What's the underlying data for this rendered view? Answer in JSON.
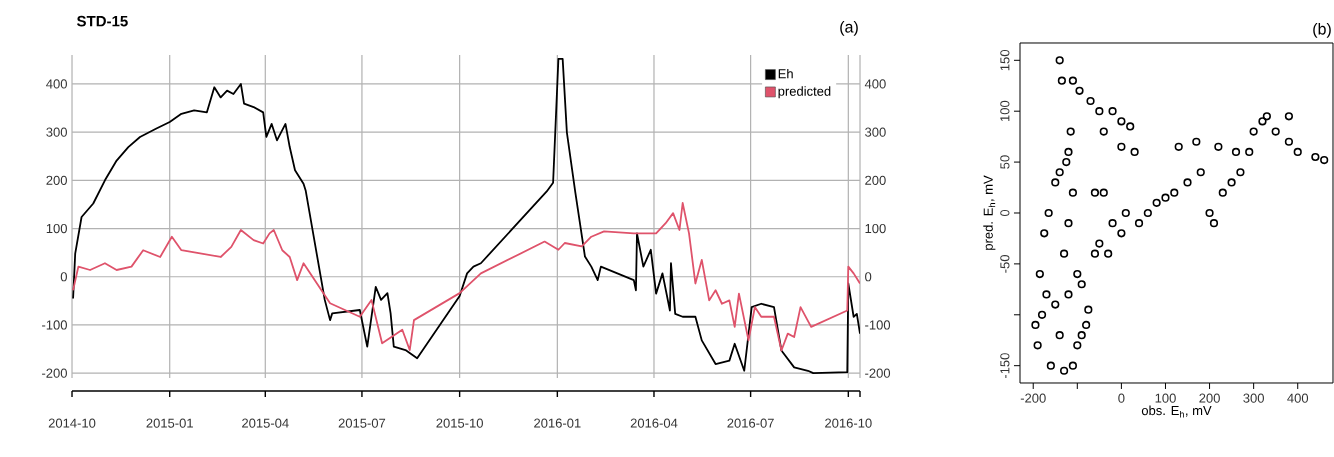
{
  "chart_data": [
    {
      "type": "line",
      "title": "STD-15",
      "annotations": [
        "(a)"
      ],
      "xlim": [
        "2014-10-01",
        "2016-10-12"
      ],
      "xticks": [
        "2014-10",
        "2015-01",
        "2015-04",
        "2015-07",
        "2015-10",
        "2016-01",
        "2016-04",
        "2016-07",
        "2016-10",
        {
          "value": "2016-10-12",
          "label": null
        }
      ],
      "ylim": [
        -210,
        460
      ],
      "yticks": [
        -200,
        -100,
        0,
        100,
        200,
        300,
        400
      ],
      "y2lim": [
        -210,
        460
      ],
      "y2ticks": [
        -200,
        -100,
        0,
        100,
        200,
        300,
        400
      ],
      "grid": true,
      "legend": "top right",
      "series": [
        {
          "name": "Eh",
          "color": "#000000",
          "x": [
            "2014-10-02",
            "2014-10-04",
            "2014-10-10",
            "2014-10-21",
            "2014-11-01",
            "2014-11-12",
            "2014-11-23",
            "2014-12-04",
            "2014-12-19",
            "2015-01-01",
            "2015-01-12",
            "2015-01-24",
            "2015-02-05",
            "2015-02-12",
            "2015-02-18",
            "2015-02-24",
            "2015-03-02",
            "2015-03-09",
            "2015-03-12",
            "2015-03-21",
            "2015-03-30",
            "2015-04-02",
            "2015-04-07",
            "2015-04-12",
            "2015-04-20",
            "2015-04-24",
            "2015-04-29",
            "2015-05-07",
            "2015-05-09",
            "2015-05-27",
            "2015-06-01",
            "2015-06-03",
            "2015-06-29",
            "2015-07-06",
            "2015-07-14",
            "2015-07-19",
            "2015-07-25",
            "2015-07-28",
            "2015-07-31",
            "2015-08-11",
            "2015-08-22",
            "2015-10-01",
            "2015-10-08",
            "2015-10-14",
            "2015-10-21",
            "2015-12-22",
            "2015-12-28",
            "2016-01-02",
            "2016-01-06",
            "2016-01-10",
            "2016-01-18",
            "2016-01-27",
            "2016-02-02",
            "2016-02-08",
            "2016-02-11",
            "2016-03-13",
            "2016-03-15",
            "2016-03-16",
            "2016-03-22",
            "2016-03-29",
            "2016-04-03",
            "2016-04-09",
            "2016-04-16",
            "2016-04-17",
            "2016-04-21",
            "2016-04-28",
            "2016-05-10",
            "2016-05-16",
            "2016-05-29",
            "2016-06-11",
            "2016-06-16",
            "2016-06-25",
            "2016-07-02",
            "2016-07-11",
            "2016-07-23",
            "2016-07-30",
            "2016-08-11",
            "2016-08-24",
            "2016-08-29",
            "2016-09-30",
            "2016-10-01",
            "2016-10-06",
            "2016-10-09",
            "2016-10-12"
          ],
          "values": [
            -45,
            48,
            124,
            152,
            200,
            241,
            269,
            290,
            307,
            321,
            338,
            345,
            341,
            393,
            372,
            386,
            379,
            400,
            359,
            352,
            341,
            290,
            317,
            283,
            317,
            269,
            221,
            193,
            179,
            -48,
            -90,
            -76,
            -69,
            -145,
            -21,
            -48,
            -34,
            -76,
            -145,
            -152,
            -169,
            -40,
            7,
            21,
            28,
            177,
            195,
            452,
            452,
            299,
            174,
            42,
            21,
            -7,
            21,
            -7,
            -28,
            90,
            21,
            56,
            -35,
            7,
            -70,
            28,
            -77,
            -83,
            -83,
            -132,
            -181,
            -174,
            -139,
            -195,
            -63,
            -56,
            -63,
            -153,
            -188,
            -195,
            -200,
            -198,
            -14,
            -83,
            -77,
            -118
          ]
        },
        {
          "name": "predicted",
          "color": "#df536b",
          "x": [
            "2014-10-02",
            "2014-10-07",
            "2014-10-18",
            "2014-11-01",
            "2014-11-12",
            "2014-11-26",
            "2014-12-07",
            "2014-12-23",
            "2015-01-03",
            "2015-01-12",
            "2015-01-31",
            "2015-02-18",
            "2015-02-28",
            "2015-03-09",
            "2015-03-21",
            "2015-03-30",
            "2015-04-05",
            "2015-04-09",
            "2015-04-17",
            "2015-04-24",
            "2015-05-01",
            "2015-05-07",
            "2015-06-01",
            "2015-06-29",
            "2015-07-10",
            "2015-07-20",
            "2015-08-08",
            "2015-08-15",
            "2015-08-19",
            "2015-10-01",
            "2015-10-21",
            "2015-12-20",
            "2016-01-02",
            "2016-01-08",
            "2016-01-24",
            "2016-02-02",
            "2016-02-14",
            "2016-03-13",
            "2016-04-03",
            "2016-04-12",
            "2016-04-19",
            "2016-04-25",
            "2016-04-28",
            "2016-05-04",
            "2016-05-10",
            "2016-05-16",
            "2016-05-23",
            "2016-05-29",
            "2016-06-04",
            "2016-06-11",
            "2016-06-16",
            "2016-06-20",
            "2016-06-29",
            "2016-07-05",
            "2016-07-11",
            "2016-07-23",
            "2016-07-30",
            "2016-08-05",
            "2016-08-11",
            "2016-08-17",
            "2016-08-27",
            "2016-09-30",
            "2016-10-01",
            "2016-10-06",
            "2016-10-12"
          ],
          "values": [
            -28,
            21,
            14,
            28,
            14,
            21,
            55,
            41,
            83,
            55,
            48,
            41,
            62,
            97,
            76,
            69,
            90,
            97,
            55,
            41,
            -7,
            28,
            -55,
            -83,
            -48,
            -138,
            -110,
            -152,
            -90,
            -34,
            7,
            73,
            56,
            70,
            63,
            83,
            94,
            90,
            90,
            111,
            132,
            97,
            153,
            90,
            -14,
            35,
            -49,
            -28,
            -56,
            -49,
            -104,
            -35,
            -132,
            -63,
            -83,
            -83,
            -153,
            -118,
            -125,
            -63,
            -104,
            -70,
            21,
            7,
            -14
          ]
        }
      ]
    },
    {
      "type": "scatter",
      "xlabel": "obs. E$_{h}$, mV",
      "ylabel": "pred. E$_{h}$, mV",
      "annotations": [
        "(b)"
      ],
      "xlim": [
        -230,
        480
      ],
      "xticks": [
        -200,
        {
          "value": -100,
          "label": null
        },
        0,
        100,
        200,
        300,
        400
      ],
      "ylim": [
        -167,
        167
      ],
      "yticks": [
        -150,
        {
          "value": -100,
          "label": null
        },
        -50,
        0,
        50,
        100,
        150
      ],
      "marker": "circle",
      "series": [
        {
          "color": "#000000",
          "x": [
            -190,
            -180,
            -185,
            -175,
            -165,
            -150,
            -140,
            -170,
            -195,
            -160,
            -130,
            -110,
            -100,
            -80,
            -75,
            -90,
            -100,
            -120,
            -140,
            -150,
            -130,
            -120,
            -110,
            -125,
            -120,
            -115,
            -140,
            -135,
            -110,
            -95,
            -70,
            -50,
            -20,
            0,
            20,
            -40,
            0,
            30,
            -60,
            -40,
            -50,
            -60,
            -30,
            0,
            -20,
            10,
            40,
            60,
            80,
            100,
            120,
            150,
            180,
            200,
            210,
            230,
            250,
            270,
            290,
            300,
            320,
            350,
            380,
            400,
            440,
            460,
            130,
            170,
            220,
            260,
            330,
            380,
            -90
          ],
          "values": [
            -130,
            -100,
            -60,
            -20,
            0,
            30,
            40,
            -80,
            -110,
            -150,
            -155,
            -150,
            -130,
            -110,
            -95,
            -70,
            -60,
            -80,
            -120,
            -90,
            -40,
            -10,
            20,
            50,
            60,
            80,
            150,
            130,
            130,
            120,
            110,
            100,
            100,
            90,
            85,
            80,
            65,
            60,
            20,
            20,
            -30,
            -40,
            -40,
            -20,
            -10,
            0,
            -10,
            0,
            10,
            15,
            20,
            30,
            40,
            0,
            -10,
            20,
            30,
            40,
            60,
            80,
            90,
            80,
            70,
            60,
            55,
            52,
            65,
            70,
            65,
            60,
            95,
            95,
            -120
          ]
        }
      ]
    }
  ]
}
